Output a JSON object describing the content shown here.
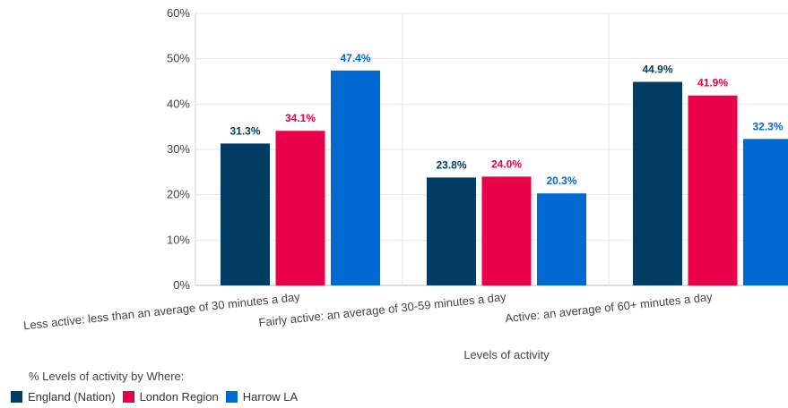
{
  "chart_data": {
    "type": "bar",
    "categories": [
      "Less active: less than an average of 30 minutes a day",
      "Fairly active: an average of 30-59 minutes a day",
      "Active: an average of 60+ minutes a day"
    ],
    "series": [
      {
        "name": "England (Nation)",
        "color": "#003c64",
        "values": [
          31.3,
          23.8,
          44.9
        ]
      },
      {
        "name": "London Region",
        "color": "#e8004a",
        "values": [
          34.1,
          24.0,
          41.9
        ]
      },
      {
        "name": "Harrow LA",
        "color": "#0069d2",
        "values": [
          47.4,
          20.3,
          32.3
        ]
      }
    ],
    "xlabel": "Levels of activity",
    "ylabel": "",
    "ylim": [
      0,
      60
    ],
    "yticks": [
      "0%",
      "10%",
      "20%",
      "30%",
      "40%",
      "50%",
      "60%"
    ],
    "data_labels": [
      [
        "31.3%",
        "34.1%",
        "47.4%"
      ],
      [
        "23.8%",
        "24.0%",
        "20.3%"
      ],
      [
        "44.9%",
        "41.9%",
        "32.3%"
      ]
    ],
    "grid": true,
    "legend_title": "% Levels of activity by Where:",
    "legend_position": "bottom-left"
  }
}
